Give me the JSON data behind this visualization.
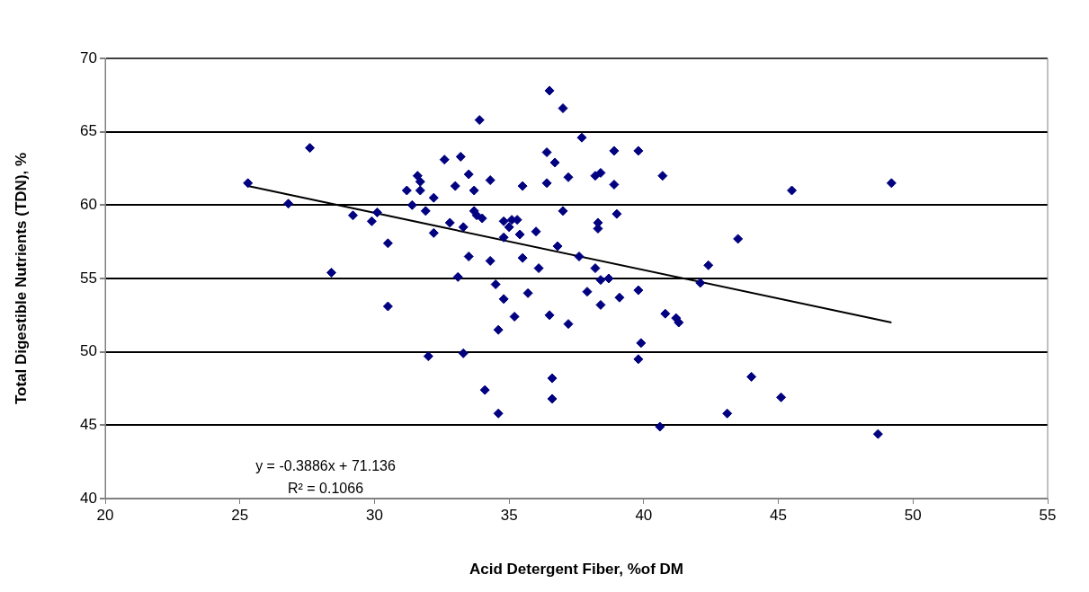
{
  "chart_data": {
    "type": "scatter",
    "xlabel": "Acid Detergent Fiber, %of DM",
    "ylabel": "Total Digestible Nutrients (TDN), %",
    "xlim": [
      20,
      55
    ],
    "xticks": [
      20,
      25,
      30,
      35,
      40,
      45,
      50,
      55
    ],
    "ylim": [
      40,
      70
    ],
    "yticks": [
      40,
      45,
      50,
      55,
      60,
      65,
      70
    ],
    "grid": "y",
    "legend": false,
    "marker": "diamond",
    "annotations": [
      "y = -0.3886x + 71.136",
      "R² = 0.1066"
    ],
    "series": [
      {
        "color": "#000080",
        "x": [
          25.3,
          26.8,
          27.6,
          28.4,
          29.2,
          29.9,
          30.1,
          30.5,
          30.5,
          31.2,
          31.4,
          31.6,
          31.7,
          31.9,
          31.7,
          32.0,
          32.2,
          32.2,
          32.6,
          32.8,
          33.0,
          33.1,
          33.2,
          33.3,
          33.3,
          33.5,
          33.5,
          33.7,
          33.7,
          33.8,
          33.9,
          34.0,
          34.1,
          34.3,
          34.3,
          34.5,
          34.6,
          34.6,
          34.8,
          34.8,
          34.8,
          35.0,
          35.1,
          35.2,
          35.3,
          35.4,
          35.5,
          35.5,
          35.7,
          36.0,
          36.1,
          36.4,
          36.4,
          36.5,
          36.5,
          36.6,
          36.6,
          36.7,
          36.8,
          37.0,
          37.0,
          37.2,
          37.2,
          37.6,
          37.7,
          37.9,
          38.2,
          38.2,
          38.3,
          38.3,
          38.4,
          38.4,
          38.4,
          38.7,
          38.9,
          38.9,
          39.0,
          39.1,
          39.8,
          39.8,
          39.9,
          39.8,
          40.6,
          40.7,
          40.8,
          41.2,
          41.3,
          42.1,
          42.4,
          43.1,
          43.5,
          44.0,
          45.1,
          45.5,
          48.7,
          49.2
        ],
        "values": [
          61.5,
          60.1,
          63.9,
          55.4,
          59.3,
          58.9,
          59.5,
          57.4,
          53.1,
          61.0,
          60.0,
          62.0,
          61.6,
          59.6,
          61.0,
          49.7,
          60.5,
          58.1,
          63.1,
          58.8,
          61.3,
          55.1,
          63.3,
          58.5,
          49.9,
          62.1,
          56.5,
          61.0,
          59.6,
          59.3,
          65.8,
          59.1,
          47.4,
          61.7,
          56.2,
          54.6,
          51.5,
          45.8,
          58.9,
          57.8,
          53.6,
          58.5,
          59.0,
          52.4,
          59.0,
          58.0,
          56.4,
          61.3,
          54.0,
          58.2,
          55.7,
          61.5,
          63.6,
          52.5,
          67.8,
          48.2,
          46.8,
          62.9,
          57.2,
          66.6,
          59.6,
          61.9,
          51.9,
          56.5,
          64.6,
          54.1,
          62.0,
          55.7,
          58.8,
          58.4,
          62.2,
          53.2,
          54.9,
          55.0,
          63.7,
          61.4,
          59.4,
          53.7,
          63.7,
          54.2,
          50.6,
          49.5,
          44.9,
          62.0,
          52.6,
          52.3,
          52.0,
          54.7,
          55.9,
          45.8,
          57.7,
          48.3,
          46.9,
          61.0,
          44.4,
          61.5
        ]
      },
      {
        "type": "line",
        "color": "#000000",
        "marker": "none",
        "x": [
          25.3,
          49.2
        ],
        "values": [
          61.3,
          52.0
        ]
      }
    ]
  }
}
